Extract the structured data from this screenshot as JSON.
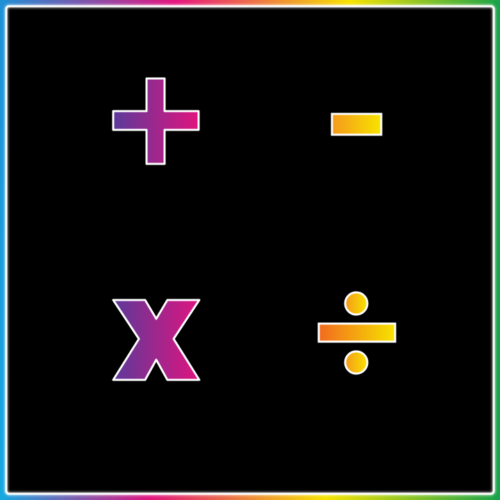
{
  "colors": {
    "background": "#000000",
    "outline": "#ffffff",
    "border_gradient": [
      "#1e90d6",
      "#e6157f",
      "#f7e300",
      "#1aa34a",
      "#17a8e0"
    ],
    "plus_gradient": [
      "#5b3a9a",
      "#e0147f"
    ],
    "minus_gradient": [
      "#f59a1c",
      "#f7e300"
    ],
    "times_gradient": [
      "#5b3a9a",
      "#e0147f"
    ],
    "divide_gradient": [
      "#f26a1f",
      "#f7e300"
    ]
  },
  "symbols": [
    {
      "name": "plus",
      "icon": "plus-icon"
    },
    {
      "name": "minus",
      "icon": "minus-icon"
    },
    {
      "name": "times",
      "icon": "times-icon",
      "glyph": "X"
    },
    {
      "name": "divide",
      "icon": "divide-icon"
    }
  ]
}
